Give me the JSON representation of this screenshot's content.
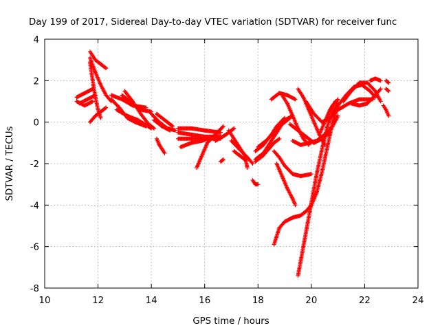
{
  "chart_data": {
    "type": "scatter",
    "title": "Day 199 of 2017, Sidereal Day-to-day VTEC variation (SDTVAR) for receiver func",
    "xlabel": "GPS time / hours",
    "ylabel": "SDTVAR / TECUs",
    "xlim": [
      10,
      24
    ],
    "ylim": [
      -8,
      4
    ],
    "xticks": [
      10,
      12,
      14,
      16,
      18,
      20,
      22,
      24
    ],
    "yticks": [
      -8,
      -6,
      -4,
      -2,
      0,
      2,
      4
    ],
    "grid": true,
    "marker": "plus",
    "series_color": "#ff0000",
    "tracks": [
      [
        [
          11.2,
          1.2
        ],
        [
          11.5,
          1.4
        ],
        [
          11.8,
          1.6
        ]
      ],
      [
        [
          11.3,
          0.9
        ],
        [
          11.6,
          1.1
        ],
        [
          11.9,
          1.3
        ]
      ],
      [
        [
          11.2,
          1.0
        ],
        [
          11.5,
          0.8
        ],
        [
          11.8,
          1.0
        ]
      ],
      [
        [
          11.7,
          3.4
        ],
        [
          11.9,
          3.0
        ],
        [
          12.1,
          2.8
        ],
        [
          12.3,
          2.6
        ]
      ],
      [
        [
          11.7,
          3.1
        ],
        [
          11.9,
          2.4
        ],
        [
          12.1,
          1.8
        ],
        [
          12.3,
          1.3
        ],
        [
          12.5,
          1.0
        ]
      ],
      [
        [
          11.7,
          2.9
        ],
        [
          11.8,
          2.0
        ],
        [
          11.9,
          1.2
        ],
        [
          12.0,
          0.6
        ],
        [
          12.1,
          0.2
        ]
      ],
      [
        [
          11.7,
          0.0
        ],
        [
          11.9,
          0.3
        ],
        [
          12.1,
          0.5
        ],
        [
          12.3,
          0.7
        ]
      ],
      [
        [
          12.5,
          1.1
        ],
        [
          12.8,
          0.7
        ],
        [
          13.1,
          0.2
        ],
        [
          13.4,
          0.0
        ],
        [
          13.8,
          -0.2
        ]
      ],
      [
        [
          12.5,
          1.3
        ],
        [
          12.9,
          1.1
        ],
        [
          13.3,
          0.8
        ],
        [
          13.8,
          0.7
        ]
      ],
      [
        [
          12.9,
          1.3
        ],
        [
          13.2,
          1.0
        ],
        [
          13.6,
          0.6
        ],
        [
          14.0,
          0.5
        ]
      ],
      [
        [
          12.7,
          0.6
        ],
        [
          13.1,
          0.3
        ],
        [
          13.5,
          0.1
        ],
        [
          14.0,
          -0.3
        ]
      ],
      [
        [
          13.0,
          1.5
        ],
        [
          13.3,
          1.0
        ],
        [
          13.6,
          0.4
        ],
        [
          13.9,
          -0.1
        ],
        [
          14.1,
          -0.3
        ]
      ],
      [
        [
          14.2,
          -0.8
        ],
        [
          14.3,
          -1.1
        ],
        [
          14.4,
          -1.3
        ],
        [
          14.5,
          -1.5
        ]
      ],
      [
        [
          14.0,
          0.4
        ],
        [
          14.3,
          0.0
        ],
        [
          14.6,
          -0.3
        ],
        [
          14.9,
          -0.4
        ]
      ],
      [
        [
          14.1,
          0.1
        ],
        [
          14.4,
          -0.2
        ],
        [
          14.7,
          -0.4
        ]
      ],
      [
        [
          14.2,
          0.4
        ],
        [
          14.5,
          0.1
        ],
        [
          14.8,
          -0.2
        ]
      ],
      [
        [
          15.0,
          -0.5
        ],
        [
          15.5,
          -0.6
        ],
        [
          16.0,
          -0.7
        ],
        [
          16.6,
          -0.7
        ]
      ],
      [
        [
          15.0,
          -0.8
        ],
        [
          15.5,
          -0.8
        ],
        [
          16.0,
          -0.8
        ],
        [
          16.6,
          -0.8
        ]
      ],
      [
        [
          15.0,
          -0.3
        ],
        [
          15.5,
          -0.3
        ],
        [
          16.0,
          -0.4
        ],
        [
          16.6,
          -0.5
        ]
      ],
      [
        [
          15.1,
          -1.2
        ],
        [
          15.5,
          -1.0
        ],
        [
          15.9,
          -0.9
        ],
        [
          16.3,
          -0.7
        ]
      ],
      [
        [
          15.7,
          -2.2
        ],
        [
          15.9,
          -1.6
        ],
        [
          16.1,
          -1.0
        ],
        [
          16.4,
          -0.6
        ],
        [
          16.7,
          -0.2
        ]
      ],
      [
        [
          16.6,
          -1.9
        ],
        [
          16.7,
          -1.8
        ]
      ],
      [
        [
          16.4,
          -0.9
        ],
        [
          16.8,
          -0.6
        ],
        [
          17.1,
          -0.3
        ]
      ],
      [
        [
          17.0,
          -0.9
        ],
        [
          17.3,
          -1.3
        ],
        [
          17.6,
          -1.7
        ],
        [
          17.8,
          -2.0
        ]
      ],
      [
        [
          16.9,
          -0.4
        ],
        [
          17.2,
          -1.0
        ],
        [
          17.5,
          -1.6
        ],
        [
          17.6,
          -2.2
        ]
      ],
      [
        [
          17.1,
          -1.4
        ],
        [
          17.3,
          -1.6
        ],
        [
          17.5,
          -1.8
        ]
      ],
      [
        [
          17.8,
          -2.8
        ],
        [
          17.9,
          -3.0
        ],
        [
          18.0,
          -3.0
        ]
      ],
      [
        [
          17.9,
          -1.8
        ],
        [
          18.2,
          -1.5
        ],
        [
          18.5,
          -0.9
        ],
        [
          18.8,
          -0.3
        ],
        [
          19.0,
          0.1
        ],
        [
          19.3,
          0.3
        ]
      ],
      [
        [
          17.9,
          -1.4
        ],
        [
          18.2,
          -1.1
        ],
        [
          18.5,
          -0.6
        ],
        [
          18.7,
          -0.2
        ],
        [
          19.0,
          0.2
        ]
      ],
      [
        [
          17.9,
          -1.9
        ],
        [
          18.2,
          -1.6
        ],
        [
          18.4,
          -1.3
        ],
        [
          18.6,
          -1.0
        ],
        [
          18.8,
          -0.8
        ]
      ],
      [
        [
          18.0,
          -1.2
        ],
        [
          18.3,
          -0.9
        ],
        [
          18.6,
          -0.5
        ],
        [
          18.9,
          -0.1
        ],
        [
          19.2,
          0.2
        ]
      ],
      [
        [
          18.6,
          -5.9
        ],
        [
          18.7,
          -5.5
        ],
        [
          18.8,
          -5.1
        ],
        [
          19.0,
          -4.8
        ],
        [
          19.3,
          -4.6
        ],
        [
          19.6,
          -4.5
        ],
        [
          19.8,
          -4.3
        ],
        [
          20.0,
          -4.0
        ],
        [
          20.2,
          -3.4
        ],
        [
          20.4,
          -2.4
        ],
        [
          20.6,
          -1.2
        ],
        [
          20.8,
          0.0
        ],
        [
          21.0,
          0.8
        ]
      ],
      [
        [
          19.5,
          -7.4
        ],
        [
          19.6,
          -6.7
        ],
        [
          19.7,
          -6.0
        ],
        [
          19.8,
          -5.3
        ],
        [
          19.9,
          -4.6
        ],
        [
          20.0,
          -3.9
        ],
        [
          20.1,
          -3.2
        ],
        [
          20.2,
          -2.5
        ],
        [
          20.4,
          -1.3
        ],
        [
          20.6,
          -0.2
        ],
        [
          20.8,
          0.5
        ],
        [
          21.0,
          0.9
        ]
      ],
      [
        [
          19.3,
          -0.9
        ],
        [
          19.6,
          -1.1
        ],
        [
          19.9,
          -1.0
        ],
        [
          20.2,
          -0.9
        ],
        [
          20.5,
          -0.6
        ],
        [
          20.8,
          -0.2
        ],
        [
          21.0,
          0.3
        ]
      ],
      [
        [
          18.6,
          -1.4
        ],
        [
          18.8,
          -1.7
        ],
        [
          19.0,
          -2.1
        ],
        [
          19.3,
          -2.5
        ],
        [
          19.6,
          -2.6
        ],
        [
          20.0,
          -2.5
        ]
      ],
      [
        [
          18.7,
          -2.0
        ],
        [
          18.9,
          -2.6
        ],
        [
          19.1,
          -3.2
        ],
        [
          19.3,
          -3.7
        ],
        [
          19.4,
          -4.0
        ]
      ],
      [
        [
          18.5,
          1.1
        ],
        [
          18.8,
          1.4
        ],
        [
          19.1,
          1.3
        ],
        [
          19.4,
          1.1
        ]
      ],
      [
        [
          18.9,
          1.3
        ],
        [
          19.1,
          0.9
        ],
        [
          19.3,
          0.3
        ],
        [
          19.5,
          -0.3
        ],
        [
          19.7,
          -0.8
        ],
        [
          19.9,
          -1.1
        ]
      ],
      [
        [
          19.5,
          1.6
        ],
        [
          19.7,
          1.2
        ],
        [
          19.9,
          0.6
        ],
        [
          20.1,
          0.0
        ],
        [
          20.3,
          -0.6
        ],
        [
          20.5,
          -1.1
        ]
      ],
      [
        [
          19.8,
          1.0
        ],
        [
          20.1,
          0.4
        ],
        [
          20.4,
          0.0
        ],
        [
          20.7,
          0.2
        ],
        [
          21.0,
          0.6
        ]
      ],
      [
        [
          19.2,
          -0.1
        ],
        [
          19.5,
          -0.4
        ],
        [
          19.8,
          -0.7
        ],
        [
          20.1,
          -1.0
        ],
        [
          20.4,
          -0.8
        ],
        [
          20.7,
          -0.5
        ]
      ],
      [
        [
          20.3,
          -0.6
        ],
        [
          20.5,
          0.0
        ],
        [
          20.7,
          0.6
        ],
        [
          20.9,
          1.0
        ]
      ],
      [
        [
          20.6,
          0.3
        ],
        [
          20.8,
          0.8
        ],
        [
          21.0,
          1.1
        ]
      ],
      [
        [
          21.0,
          0.6
        ],
        [
          21.4,
          0.9
        ],
        [
          21.8,
          1.1
        ],
        [
          22.3,
          1.1
        ]
      ],
      [
        [
          21.0,
          0.8
        ],
        [
          21.3,
          1.3
        ],
        [
          21.6,
          1.7
        ],
        [
          21.9,
          1.8
        ],
        [
          22.2,
          1.5
        ],
        [
          22.4,
          1.2
        ]
      ],
      [
        [
          21.2,
          1.0
        ],
        [
          21.5,
          1.5
        ],
        [
          21.8,
          1.9
        ],
        [
          22.1,
          1.9
        ],
        [
          22.4,
          1.5
        ],
        [
          22.6,
          1.0
        ]
      ],
      [
        [
          21.5,
          0.9
        ],
        [
          21.8,
          0.8
        ],
        [
          22.1,
          0.9
        ],
        [
          22.4,
          1.3
        ],
        [
          22.6,
          1.6
        ]
      ],
      [
        [
          22.2,
          2.0
        ],
        [
          22.4,
          2.1
        ],
        [
          22.6,
          2.0
        ]
      ],
      [
        [
          22.8,
          2.0
        ],
        [
          22.9,
          1.9
        ]
      ],
      [
        [
          22.8,
          1.6
        ],
        [
          22.9,
          1.5
        ]
      ],
      [
        [
          22.7,
          0.8
        ],
        [
          22.8,
          0.6
        ],
        [
          22.9,
          0.3
        ]
      ]
    ]
  }
}
